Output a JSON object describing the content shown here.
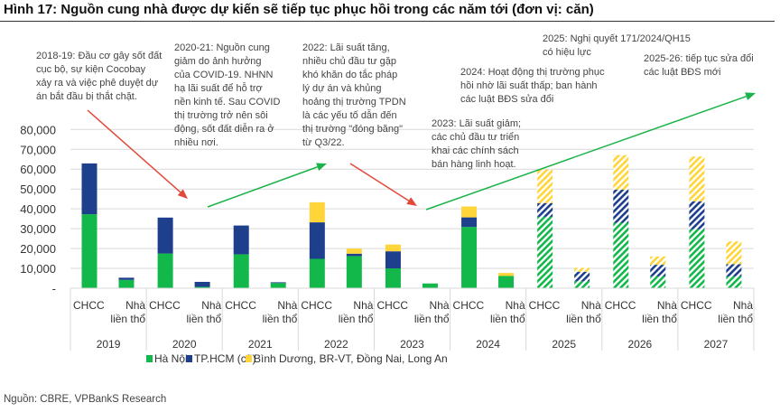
{
  "title": "Hình 17: Nguồn cung nhà được dự kiến sẽ tiếp tục phục hồi trong các năm tới (đơn vị: căn)",
  "source": "Nguồn: CBRE, VPBankS Research",
  "annotations": [
    "2018-19: Đầu cơ gây sốt đất\ncục bộ, sự kiện Cocobay\nxảy ra và việc phê duyệt dự\nán bắt đầu bị thắt chặt.",
    "2020-21: Nguồn cung\ngiảm do ảnh hưởng\ncủa COVID-19. NHNN\nhạ lãi suất để hỗ trợ\nnền kinh tế. Sau COVID\nthị trường trở nên sôi\nđộng, sốt đất diễn ra ở\nnhiều nơi.",
    "2022: Lãi suất tăng,\nnhiều chủ đầu tư gặp\nkhó khăn do tắc pháp\nlý dự án và khủng\nhoảng thị trường TPDN\nlà các yếu tố dẫn đến\nthị trường \"đóng băng\"\ntừ Q3/22.",
    "2023: Lãi suất giảm;\ncác chủ đầu tư triển\nkhai các chính sách\nbán hàng linh hoạt.",
    "2024: Hoạt động thị trường phục\nhồi nhờ lãi suất thấp; ban hành\ncác luật BĐS sửa đổi",
    "2025: Nghị quyết 171/2024/QH15\ncó hiệu lực",
    "2025-26: tiếp tục sửa đổi\ncác luật BĐS mới"
  ],
  "chart_data": {
    "type": "bar",
    "stacked": true,
    "title": "Hình 17: Nguồn cung nhà được dự kiến sẽ tiếp tục phục hồi trong các năm tới (đơn vị: căn)",
    "ylim": [
      0,
      80000
    ],
    "yticks": [
      "-",
      "10,000",
      "20,000",
      "30,000",
      "40,000",
      "50,000",
      "60,000",
      "70,000",
      "80,000"
    ],
    "grid": true,
    "legend_position": "bottom",
    "years": [
      "2019",
      "2020",
      "2021",
      "2022",
      "2023",
      "2024",
      "2025",
      "2026",
      "2027"
    ],
    "subcategories": [
      "CHCC",
      "Nhà\nliền thổ"
    ],
    "forecast_years": [
      "2025",
      "2026",
      "2027"
    ],
    "forecast_style": "hatched",
    "series": [
      {
        "name": "Hà Nội",
        "color": "#12B84A",
        "values": [
          37300,
          4200,
          17500,
          700,
          17100,
          2600,
          14800,
          16200,
          10000,
          2400,
          30900,
          6200,
          36000,
          3500,
          33000,
          6000,
          29700,
          6000
        ]
      },
      {
        "name": "TP.HCM (cũ)",
        "color": "#1E3F8C",
        "values": [
          25600,
          1100,
          18100,
          2500,
          14500,
          400,
          18400,
          1200,
          8600,
          0,
          4800,
          0,
          6900,
          4800,
          16700,
          5800,
          14100,
          6100
        ]
      },
      {
        "name": "Bình Dương, BR-VT, Đồng Nai, Long An",
        "color": "#FFD53A",
        "values": [
          0,
          0,
          0,
          0,
          0,
          0,
          10100,
          2600,
          3400,
          0,
          5500,
          1500,
          16900,
          2000,
          17400,
          4200,
          22600,
          11500
        ]
      }
    ],
    "arrows": [
      {
        "color": "#E2493B",
        "direction": "down",
        "period": "2018-19"
      },
      {
        "color": "#1BB34A",
        "direction": "up",
        "period": "2020-21"
      },
      {
        "color": "#E2493B",
        "direction": "down",
        "period": "2022"
      },
      {
        "color": "#1BB34A",
        "direction": "up",
        "period": "2023-2027"
      }
    ]
  }
}
